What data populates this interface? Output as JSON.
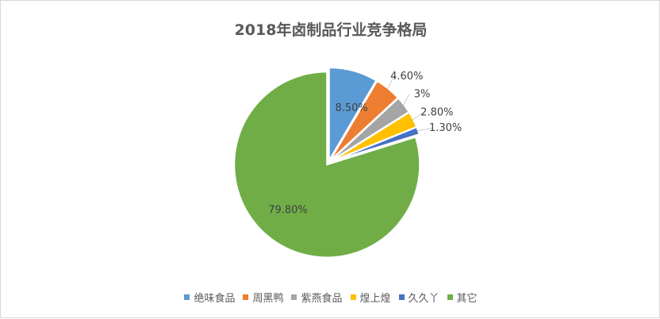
{
  "chart_data": {
    "type": "pie",
    "title": "2018年卤制品行业竞争格局",
    "categories": [
      "绝味食品",
      "周黑鸭",
      "紫燕食品",
      "煌上煌",
      "久久丫",
      "其它"
    ],
    "values": [
      8.5,
      4.6,
      3,
      2.8,
      1.3,
      79.8
    ],
    "data_labels": [
      "8.50%",
      "4.60%",
      "3%",
      "2.80%",
      "1.30%",
      "79.80%"
    ],
    "colors": [
      "#5b9bd5",
      "#ed7d31",
      "#a5a5a5",
      "#ffc000",
      "#4472c4",
      "#70ad47"
    ],
    "legend_position": "bottom",
    "exploded": true
  }
}
